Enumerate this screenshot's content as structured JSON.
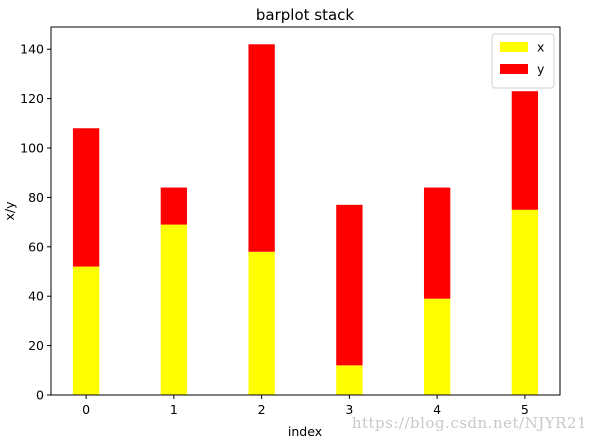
{
  "chart_data": {
    "type": "bar",
    "stacked": true,
    "title": "barplot stack",
    "xlabel": "index",
    "ylabel": "x/y",
    "categories": [
      "0",
      "1",
      "2",
      "3",
      "4",
      "5"
    ],
    "ylim": [
      0,
      149
    ],
    "yticks": [
      0,
      20,
      40,
      60,
      80,
      100,
      120,
      140
    ],
    "grid": false,
    "legend_position": "top-right",
    "series": [
      {
        "name": "x",
        "color": "#ffff00",
        "values": [
          52,
          69,
          58,
          12,
          39,
          75
        ]
      },
      {
        "name": "y",
        "color": "#ff0000",
        "values": [
          56,
          15,
          84,
          65,
          45,
          48
        ]
      }
    ]
  },
  "watermark": "https://blog.csdn.net/NJYR21"
}
